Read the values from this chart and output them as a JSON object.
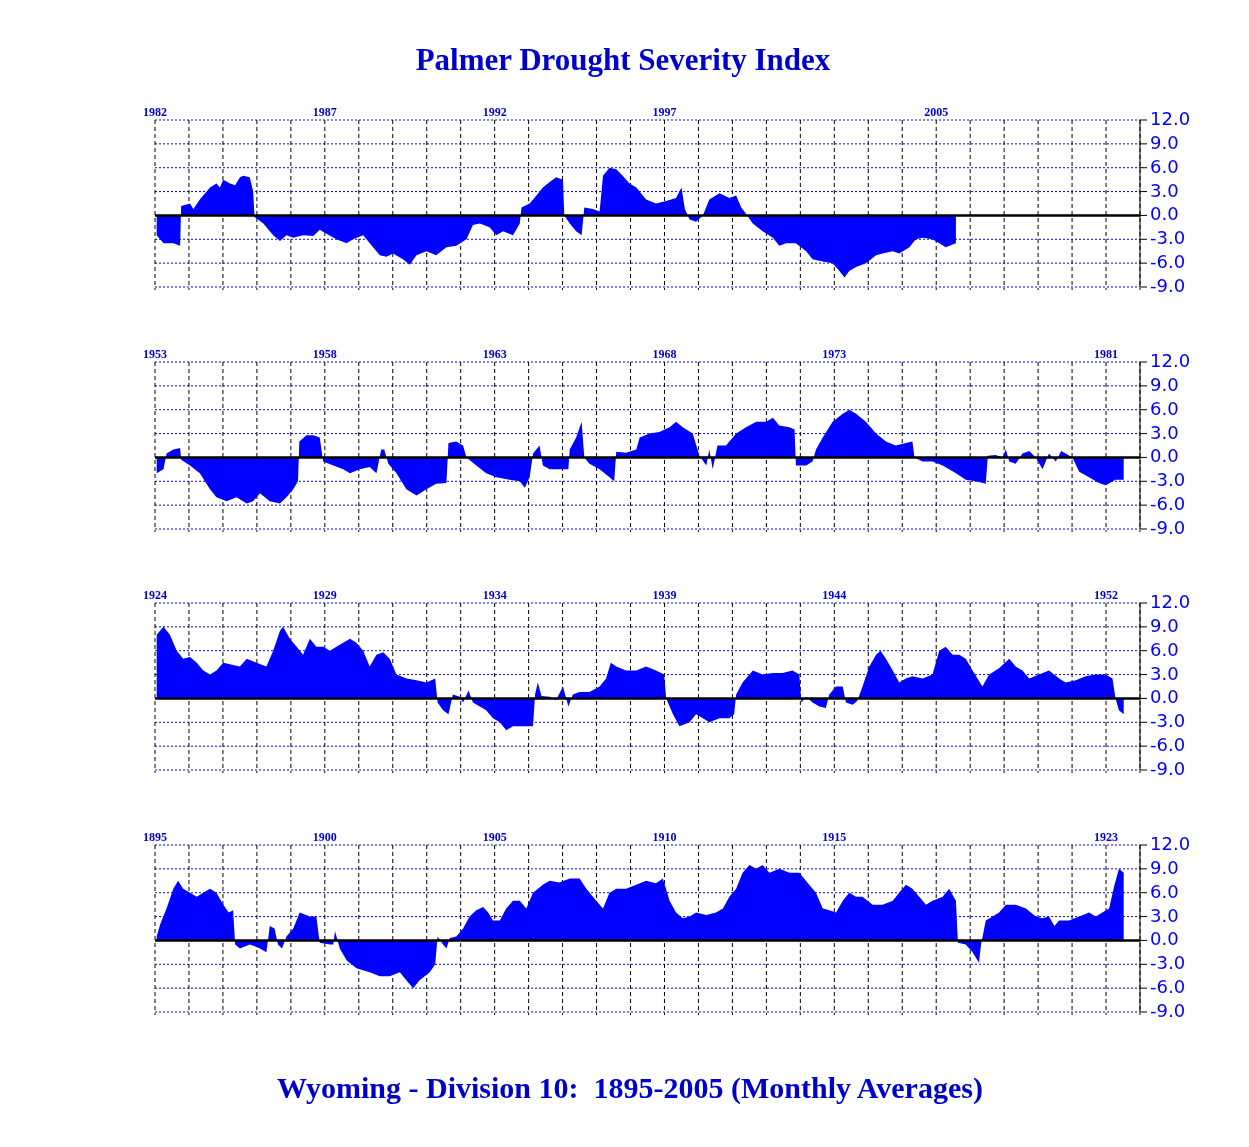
{
  "chart_data": [
    {
      "type": "area",
      "title": "Palmer Drought Severity Index",
      "color": "#0000ff",
      "grid": true,
      "xlim": [
        1982,
        2011
      ],
      "ylim": [
        -9,
        12
      ],
      "xticks": [
        {
          "value": 1982,
          "label": "1982"
        },
        {
          "value": 1983,
          "label": null
        },
        {
          "value": 1984,
          "label": null
        },
        {
          "value": 1985,
          "label": null
        },
        {
          "value": 1986,
          "label": null
        },
        {
          "value": 1987,
          "label": "1987"
        },
        {
          "value": 1988,
          "label": null
        },
        {
          "value": 1989,
          "label": null
        },
        {
          "value": 1990,
          "label": null
        },
        {
          "value": 1991,
          "label": null
        },
        {
          "value": 1992,
          "label": "1992"
        },
        {
          "value": 1993,
          "label": null
        },
        {
          "value": 1994,
          "label": null
        },
        {
          "value": 1995,
          "label": null
        },
        {
          "value": 1996,
          "label": null
        },
        {
          "value": 1997,
          "label": "1997"
        },
        {
          "value": 1998,
          "label": null
        },
        {
          "value": 1999,
          "label": null
        },
        {
          "value": 2000,
          "label": null
        },
        {
          "value": 2001,
          "label": null
        },
        {
          "value": 2002,
          "label": null
        },
        {
          "value": 2003,
          "label": null
        },
        {
          "value": 2004,
          "label": null
        },
        {
          "value": 2005,
          "label": "2005"
        },
        {
          "value": 2006,
          "label": null
        },
        {
          "value": 2007,
          "label": null
        },
        {
          "value": 2008,
          "label": null
        },
        {
          "value": 2009,
          "label": null
        },
        {
          "value": 2010,
          "label": null
        },
        {
          "value": 2011,
          "label": null
        }
      ],
      "yticks": [
        {
          "value": 12,
          "label": "12.0"
        },
        {
          "value": 9,
          "label": "9.0"
        },
        {
          "value": 6,
          "label": "6.0"
        },
        {
          "value": 3,
          "label": "3.0"
        },
        {
          "value": 0,
          "label": "0.0"
        },
        {
          "value": -3,
          "label": "-3.0"
        },
        {
          "value": -6,
          "label": "-6.0"
        },
        {
          "value": -9,
          "label": "-9.0"
        }
      ],
      "x": [
        1982.05,
        1982.25,
        1982.54,
        1982.74,
        1982.77,
        1983.03,
        1983.13,
        1983.32,
        1983.62,
        1983.81,
        1983.91,
        1984.01,
        1984.21,
        1984.36,
        1984.5,
        1984.6,
        1984.79,
        1984.89,
        1984.93,
        1985.19,
        1985.48,
        1985.68,
        1985.87,
        1986.07,
        1986.36,
        1986.66,
        1986.85,
        1987.05,
        1987.34,
        1987.64,
        1987.83,
        1988.13,
        1988.42,
        1988.62,
        1988.81,
        1989.01,
        1989.3,
        1989.5,
        1989.7,
        1989.99,
        1990.28,
        1990.58,
        1990.87,
        1991.17,
        1991.36,
        1991.56,
        1991.85,
        1992.05,
        1992.25,
        1992.54,
        1992.74,
        1992.79,
        1993.03,
        1993.23,
        1993.42,
        1993.62,
        1993.81,
        1994.01,
        1994.05,
        1994.21,
        1994.4,
        1994.56,
        1994.64,
        1994.89,
        1995.09,
        1995.19,
        1995.38,
        1995.58,
        1995.77,
        1995.97,
        1996.17,
        1996.46,
        1996.75,
        1997.05,
        1997.34,
        1997.5,
        1997.6,
        1997.74,
        1997.93,
        1998.13,
        1998.32,
        1998.62,
        1998.91,
        1999.11,
        1999.26,
        1999.4,
        1999.6,
        1999.89,
        2000.19,
        2000.38,
        2000.58,
        2000.87,
        2001.17,
        2001.36,
        2001.66,
        2001.95,
        2002.15,
        2002.3,
        2002.44,
        2002.64,
        2002.93,
        2003.23,
        2003.42,
        2003.72,
        2003.91,
        2004.21,
        2004.4,
        2004.6,
        2004.89,
        2005.09,
        2005.28,
        2005.58
      ],
      "values": [
        -2.5,
        -3.5,
        -3.5,
        -3.8,
        1.2,
        1.5,
        0.8,
        2.0,
        3.5,
        4.0,
        3.5,
        4.5,
        4.0,
        3.8,
        4.8,
        5.0,
        4.8,
        3.0,
        -0.2,
        -1.0,
        -2.5,
        -3.2,
        -2.5,
        -2.8,
        -2.5,
        -2.6,
        -1.8,
        -2.3,
        -3.0,
        -3.5,
        -3.0,
        -2.5,
        -4.0,
        -5.0,
        -5.2,
        -4.8,
        -5.5,
        -6.2,
        -5.0,
        -4.5,
        -5.0,
        -4.0,
        -3.8,
        -3.0,
        -1.2,
        -1.0,
        -1.5,
        -2.5,
        -2.0,
        -2.5,
        -1.0,
        1.0,
        1.5,
        2.5,
        3.5,
        4.2,
        4.8,
        4.5,
        0.0,
        -1.0,
        -2.0,
        -2.5,
        1.0,
        0.8,
        0.5,
        5.0,
        6.0,
        5.8,
        5.0,
        4.0,
        3.5,
        2.0,
        1.5,
        1.8,
        2.2,
        3.5,
        0.8,
        -0.5,
        -0.8,
        0.0,
        2.0,
        2.8,
        2.2,
        2.5,
        1.0,
        0.2,
        -1.0,
        -2.0,
        -2.8,
        -3.8,
        -3.5,
        -3.5,
        -4.5,
        -5.5,
        -5.8,
        -6.0,
        -7.0,
        -7.8,
        -7.0,
        -6.5,
        -6.0,
        -5.0,
        -4.8,
        -4.5,
        -4.8,
        -4.0,
        -3.0,
        -2.8,
        -3.0,
        -3.5,
        -4.0,
        -3.5
      ]
    },
    {
      "type": "area",
      "color": "#0000ff",
      "grid": true,
      "xlim": [
        1953,
        1982
      ],
      "ylim": [
        -9,
        12
      ],
      "xticks": [
        {
          "value": 1953,
          "label": "1953"
        },
        {
          "value": 1954,
          "label": null
        },
        {
          "value": 1955,
          "label": null
        },
        {
          "value": 1956,
          "label": null
        },
        {
          "value": 1957,
          "label": null
        },
        {
          "value": 1958,
          "label": "1958"
        },
        {
          "value": 1959,
          "label": null
        },
        {
          "value": 1960,
          "label": null
        },
        {
          "value": 1961,
          "label": null
        },
        {
          "value": 1962,
          "label": null
        },
        {
          "value": 1963,
          "label": "1963"
        },
        {
          "value": 1964,
          "label": null
        },
        {
          "value": 1965,
          "label": null
        },
        {
          "value": 1966,
          "label": null
        },
        {
          "value": 1967,
          "label": null
        },
        {
          "value": 1968,
          "label": "1968"
        },
        {
          "value": 1969,
          "label": null
        },
        {
          "value": 1970,
          "label": null
        },
        {
          "value": 1971,
          "label": null
        },
        {
          "value": 1972,
          "label": null
        },
        {
          "value": 1973,
          "label": "1973"
        },
        {
          "value": 1974,
          "label": null
        },
        {
          "value": 1975,
          "label": null
        },
        {
          "value": 1976,
          "label": null
        },
        {
          "value": 1977,
          "label": null
        },
        {
          "value": 1978,
          "label": null
        },
        {
          "value": 1979,
          "label": null
        },
        {
          "value": 1980,
          "label": null
        },
        {
          "value": 1981,
          "label": "1981"
        },
        {
          "value": 1982,
          "label": null
        }
      ],
      "yticks": [
        {
          "value": 12,
          "label": "12.0"
        },
        {
          "value": 9,
          "label": "9.0"
        },
        {
          "value": 6,
          "label": "6.0"
        },
        {
          "value": 3,
          "label": "3.0"
        },
        {
          "value": 0,
          "label": "0.0"
        },
        {
          "value": -3,
          "label": "-3.0"
        },
        {
          "value": -6,
          "label": "-6.0"
        },
        {
          "value": -9,
          "label": "-9.0"
        }
      ],
      "x": [
        1953.05,
        1953.25,
        1953.34,
        1953.54,
        1953.74,
        1953.77,
        1954.03,
        1954.32,
        1954.62,
        1954.81,
        1955.11,
        1955.4,
        1955.7,
        1955.89,
        1956.09,
        1956.38,
        1956.68,
        1956.87,
        1957.07,
        1957.21,
        1957.25,
        1957.46,
        1957.66,
        1957.85,
        1957.95,
        1958.25,
        1958.54,
        1958.74,
        1959.03,
        1959.32,
        1959.52,
        1959.66,
        1959.75,
        1959.87,
        1960.11,
        1960.4,
        1960.7,
        1960.99,
        1961.28,
        1961.58,
        1961.64,
        1961.87,
        1962.07,
        1962.17,
        1962.46,
        1962.75,
        1963.05,
        1963.44,
        1963.74,
        1963.89,
        1964.03,
        1964.13,
        1964.32,
        1964.42,
        1964.62,
        1964.91,
        1965.17,
        1965.21,
        1965.4,
        1965.56,
        1965.64,
        1965.79,
        1966.09,
        1966.38,
        1966.52,
        1966.58,
        1966.87,
        1967.17,
        1967.27,
        1967.56,
        1967.85,
        1968.15,
        1968.34,
        1968.54,
        1968.83,
        1969.03,
        1969.23,
        1969.32,
        1969.42,
        1969.56,
        1969.81,
        1970.11,
        1970.4,
        1970.7,
        1970.99,
        1971.19,
        1971.38,
        1971.68,
        1971.83,
        1971.87,
        1972.17,
        1972.36,
        1972.46,
        1972.66,
        1972.95,
        1973.25,
        1973.44,
        1973.64,
        1973.93,
        1974.23,
        1974.52,
        1974.81,
        1975.11,
        1975.3,
        1975.36,
        1975.6,
        1975.89,
        1976.19,
        1976.58,
        1976.87,
        1977.17,
        1977.46,
        1977.52,
        1977.75,
        1977.95,
        1978.05,
        1978.15,
        1978.34,
        1978.54,
        1978.74,
        1978.93,
        1979.13,
        1979.32,
        1979.52,
        1979.68,
        1979.81,
        1980.01,
        1980.21,
        1980.5,
        1980.79,
        1980.99,
        1981.28,
        1981.52
      ],
      "values": [
        -2.0,
        -1.5,
        0.5,
        1.0,
        1.2,
        -0.3,
        -1.0,
        -2.0,
        -4.0,
        -5.0,
        -5.5,
        -5.0,
        -5.8,
        -5.5,
        -4.5,
        -5.5,
        -5.8,
        -5.0,
        -4.0,
        -3.0,
        2.0,
        2.8,
        2.8,
        2.5,
        -0.5,
        -1.0,
        -1.5,
        -2.0,
        -1.5,
        -1.2,
        -2.0,
        1.0,
        1.0,
        -0.8,
        -2.0,
        -4.0,
        -4.8,
        -4.0,
        -3.3,
        -3.2,
        1.8,
        2.0,
        1.5,
        0.0,
        -1.0,
        -2.0,
        -2.5,
        -2.8,
        -3.0,
        -3.8,
        -2.5,
        0.5,
        1.5,
        -1.0,
        -1.5,
        -1.5,
        -1.5,
        1.0,
        2.5,
        4.5,
        0.0,
        -0.8,
        -1.5,
        -2.5,
        -3.0,
        0.7,
        0.6,
        1.0,
        2.5,
        3.0,
        3.2,
        3.8,
        4.5,
        3.8,
        3.0,
        0.2,
        -1.0,
        1.0,
        -1.5,
        1.5,
        1.5,
        3.0,
        3.8,
        4.5,
        4.5,
        5.0,
        4.0,
        3.8,
        3.5,
        -1.0,
        -1.0,
        -0.5,
        1.0,
        2.5,
        4.5,
        5.5,
        6.0,
        5.5,
        4.5,
        3.0,
        2.0,
        1.5,
        1.8,
        2.0,
        0.0,
        -0.5,
        -0.5,
        -1.0,
        -2.0,
        -2.8,
        -3.0,
        -3.3,
        0.2,
        0.3,
        0.0,
        1.0,
        -0.5,
        -0.8,
        0.5,
        0.8,
        0.0,
        -1.5,
        0.5,
        -0.5,
        0.8,
        0.5,
        0.0,
        -1.8,
        -2.5,
        -3.2,
        -3.5,
        -2.8,
        -2.8
      ]
    },
    {
      "type": "area",
      "color": "#0000ff",
      "grid": true,
      "xlim": [
        1924,
        1953
      ],
      "ylim": [
        -9,
        12
      ],
      "xticks": [
        {
          "value": 1924,
          "label": "1924"
        },
        {
          "value": 1925,
          "label": null
        },
        {
          "value": 1926,
          "label": null
        },
        {
          "value": 1927,
          "label": null
        },
        {
          "value": 1928,
          "label": null
        },
        {
          "value": 1929,
          "label": "1929"
        },
        {
          "value": 1930,
          "label": null
        },
        {
          "value": 1931,
          "label": null
        },
        {
          "value": 1932,
          "label": null
        },
        {
          "value": 1933,
          "label": null
        },
        {
          "value": 1934,
          "label": "1934"
        },
        {
          "value": 1935,
          "label": null
        },
        {
          "value": 1936,
          "label": null
        },
        {
          "value": 1937,
          "label": null
        },
        {
          "value": 1938,
          "label": null
        },
        {
          "value": 1939,
          "label": "1939"
        },
        {
          "value": 1940,
          "label": null
        },
        {
          "value": 1941,
          "label": null
        },
        {
          "value": 1942,
          "label": null
        },
        {
          "value": 1943,
          "label": null
        },
        {
          "value": 1944,
          "label": "1944"
        },
        {
          "value": 1945,
          "label": null
        },
        {
          "value": 1946,
          "label": null
        },
        {
          "value": 1947,
          "label": null
        },
        {
          "value": 1948,
          "label": null
        },
        {
          "value": 1949,
          "label": null
        },
        {
          "value": 1950,
          "label": null
        },
        {
          "value": 1951,
          "label": null
        },
        {
          "value": 1952,
          "label": "1952"
        },
        {
          "value": 1953,
          "label": null
        }
      ],
      "yticks": [
        {
          "value": 12,
          "label": "12.0"
        },
        {
          "value": 9,
          "label": "9.0"
        },
        {
          "value": 6,
          "label": "6.0"
        },
        {
          "value": 3,
          "label": "3.0"
        },
        {
          "value": 0,
          "label": "0.0"
        },
        {
          "value": -3,
          "label": "-3.0"
        },
        {
          "value": -6,
          "label": "-6.0"
        },
        {
          "value": -9,
          "label": "-9.0"
        }
      ],
      "x": [
        1924.05,
        1924.25,
        1924.44,
        1924.64,
        1924.83,
        1925.03,
        1925.23,
        1925.42,
        1925.62,
        1925.81,
        1926.01,
        1926.3,
        1926.5,
        1926.7,
        1926.99,
        1927.28,
        1927.48,
        1927.68,
        1927.77,
        1927.97,
        1928.17,
        1928.36,
        1928.56,
        1928.75,
        1928.95,
        1929.15,
        1929.34,
        1929.54,
        1929.74,
        1929.93,
        1930.13,
        1930.32,
        1930.52,
        1930.72,
        1930.91,
        1931.11,
        1931.4,
        1931.7,
        1931.99,
        1932.25,
        1932.32,
        1932.48,
        1932.64,
        1932.77,
        1932.97,
        1933.07,
        1933.23,
        1933.36,
        1933.56,
        1933.75,
        1933.95,
        1934.15,
        1934.34,
        1934.54,
        1934.83,
        1935.13,
        1935.19,
        1935.27,
        1935.38,
        1935.62,
        1935.81,
        1936.01,
        1936.17,
        1936.3,
        1936.5,
        1936.79,
        1937.09,
        1937.28,
        1937.42,
        1937.58,
        1937.87,
        1938.17,
        1938.46,
        1938.75,
        1938.99,
        1939.05,
        1939.25,
        1939.44,
        1939.74,
        1939.93,
        1940.13,
        1940.32,
        1940.62,
        1940.91,
        1941.05,
        1941.11,
        1941.3,
        1941.6,
        1941.89,
        1942.19,
        1942.48,
        1942.77,
        1942.97,
        1943.03,
        1943.17,
        1943.36,
        1943.56,
        1943.75,
        1943.85,
        1944.05,
        1944.25,
        1944.34,
        1944.54,
        1944.68,
        1944.83,
        1945.03,
        1945.23,
        1945.36,
        1945.52,
        1945.72,
        1945.91,
        1946.11,
        1946.3,
        1946.6,
        1946.89,
        1947.09,
        1947.28,
        1947.48,
        1947.68,
        1947.87,
        1948.07,
        1948.36,
        1948.56,
        1948.85,
        1949.15,
        1949.34,
        1949.54,
        1949.74,
        1950.03,
        1950.32,
        1950.62,
        1950.81,
        1951.11,
        1951.4,
        1951.7,
        1951.99,
        1952.19,
        1952.28,
        1952.38,
        1952.52
      ],
      "values": [
        8.0,
        9.0,
        8.0,
        6.0,
        5.0,
        5.2,
        4.5,
        3.5,
        3.0,
        3.5,
        4.5,
        4.2,
        4.0,
        5.0,
        4.5,
        4.0,
        6.0,
        8.5,
        9.0,
        7.5,
        6.5,
        5.5,
        7.5,
        6.5,
        6.5,
        6.0,
        6.5,
        7.0,
        7.5,
        7.0,
        6.0,
        4.0,
        5.5,
        5.8,
        5.0,
        3.0,
        2.5,
        2.3,
        2.0,
        2.5,
        -0.5,
        -1.5,
        -2.0,
        0.5,
        0.2,
        -0.5,
        1.0,
        -0.5,
        -1.0,
        -1.5,
        -2.5,
        -3.0,
        -4.0,
        -3.5,
        -3.5,
        -3.5,
        0.5,
        2.0,
        0.3,
        0.2,
        -0.2,
        1.5,
        -1.0,
        0.5,
        0.8,
        0.8,
        1.5,
        2.5,
        4.5,
        4.0,
        3.5,
        3.5,
        4.0,
        3.5,
        3.0,
        0.0,
        -2.0,
        -3.5,
        -3.0,
        -2.0,
        -2.5,
        -3.0,
        -2.5,
        -2.5,
        -2.0,
        0.5,
        2.0,
        3.5,
        3.0,
        3.2,
        3.2,
        3.5,
        3.0,
        -0.5,
        0.2,
        -0.5,
        -1.0,
        -1.2,
        0.5,
        1.5,
        1.5,
        -0.5,
        -0.8,
        -0.3,
        1.5,
        4.0,
        5.5,
        6.0,
        5.0,
        3.5,
        2.0,
        2.5,
        2.8,
        2.5,
        3.0,
        6.0,
        6.5,
        5.5,
        5.5,
        5.0,
        3.5,
        1.5,
        3.0,
        3.8,
        5.0,
        4.0,
        3.5,
        2.5,
        3.0,
        3.5,
        2.5,
        2.0,
        2.3,
        2.8,
        3.0,
        3.0,
        2.5,
        0.0,
        -1.5,
        -2.0
      ]
    },
    {
      "type": "area",
      "color": "#0000ff",
      "grid": true,
      "xlim": [
        1895,
        1924
      ],
      "ylim": [
        -9,
        12
      ],
      "annotations": [
        "Wyoming - Division 10:  1895-2005 (Monthly Averages)"
      ],
      "xticks": [
        {
          "value": 1895,
          "label": "1895"
        },
        {
          "value": 1896,
          "label": null
        },
        {
          "value": 1897,
          "label": null
        },
        {
          "value": 1898,
          "label": null
        },
        {
          "value": 1899,
          "label": null
        },
        {
          "value": 1900,
          "label": "1900"
        },
        {
          "value": 1901,
          "label": null
        },
        {
          "value": 1902,
          "label": null
        },
        {
          "value": 1903,
          "label": null
        },
        {
          "value": 1904,
          "label": null
        },
        {
          "value": 1905,
          "label": "1905"
        },
        {
          "value": 1906,
          "label": null
        },
        {
          "value": 1907,
          "label": null
        },
        {
          "value": 1908,
          "label": null
        },
        {
          "value": 1909,
          "label": null
        },
        {
          "value": 1910,
          "label": "1910"
        },
        {
          "value": 1911,
          "label": null
        },
        {
          "value": 1912,
          "label": null
        },
        {
          "value": 1913,
          "label": null
        },
        {
          "value": 1914,
          "label": null
        },
        {
          "value": 1915,
          "label": "1915"
        },
        {
          "value": 1916,
          "label": null
        },
        {
          "value": 1917,
          "label": null
        },
        {
          "value": 1918,
          "label": null
        },
        {
          "value": 1919,
          "label": null
        },
        {
          "value": 1920,
          "label": null
        },
        {
          "value": 1921,
          "label": null
        },
        {
          "value": 1922,
          "label": null
        },
        {
          "value": 1923,
          "label": "1923"
        },
        {
          "value": 1924,
          "label": null
        }
      ],
      "yticks": [
        {
          "value": 12,
          "label": "12.0"
        },
        {
          "value": 9,
          "label": "9.0"
        },
        {
          "value": 6,
          "label": "6.0"
        },
        {
          "value": 3,
          "label": "3.0"
        },
        {
          "value": 0,
          "label": "0.0"
        },
        {
          "value": -3,
          "label": "-3.0"
        },
        {
          "value": -6,
          "label": "-6.0"
        },
        {
          "value": -9,
          "label": "-9.0"
        }
      ],
      "x": [
        1895.05,
        1895.15,
        1895.34,
        1895.54,
        1895.68,
        1895.83,
        1896.03,
        1896.23,
        1896.42,
        1896.62,
        1896.81,
        1897.01,
        1897.17,
        1897.3,
        1897.36,
        1897.5,
        1897.79,
        1898.09,
        1898.28,
        1898.38,
        1898.52,
        1898.62,
        1898.74,
        1898.87,
        1899.07,
        1899.26,
        1899.56,
        1899.75,
        1899.85,
        1900.15,
        1900.25,
        1900.3,
        1900.44,
        1900.64,
        1900.93,
        1901.32,
        1901.62,
        1901.91,
        1902.21,
        1902.4,
        1902.6,
        1902.79,
        1903.09,
        1903.25,
        1903.32,
        1903.48,
        1903.58,
        1903.68,
        1903.87,
        1904.07,
        1904.26,
        1904.46,
        1904.66,
        1904.81,
        1904.95,
        1905.15,
        1905.34,
        1905.54,
        1905.74,
        1905.93,
        1906.13,
        1906.42,
        1906.62,
        1906.91,
        1907.21,
        1907.5,
        1907.7,
        1907.99,
        1908.19,
        1908.38,
        1908.58,
        1908.87,
        1909.17,
        1909.46,
        1909.75,
        1909.95,
        1910.15,
        1910.34,
        1910.54,
        1910.74,
        1910.93,
        1911.23,
        1911.52,
        1911.72,
        1911.91,
        1912.11,
        1912.3,
        1912.5,
        1912.7,
        1912.89,
        1913.09,
        1913.38,
        1913.68,
        1913.97,
        1914.26,
        1914.46,
        1914.66,
        1914.85,
        1915.05,
        1915.25,
        1915.44,
        1915.64,
        1915.83,
        1916.13,
        1916.42,
        1916.72,
        1916.91,
        1917.11,
        1917.3,
        1917.5,
        1917.7,
        1917.89,
        1918.19,
        1918.38,
        1918.58,
        1918.64,
        1918.87,
        1919.07,
        1919.26,
        1919.32,
        1919.46,
        1919.66,
        1919.85,
        1920.05,
        1920.34,
        1920.64,
        1920.93,
        1921.13,
        1921.32,
        1921.48,
        1921.62,
        1921.91,
        1922.21,
        1922.5,
        1922.7,
        1922.89,
        1923.09,
        1923.25,
        1923.38,
        1923.52
      ],
      "values": [
        0.5,
        2.0,
        4.0,
        6.5,
        7.5,
        6.5,
        6.0,
        5.5,
        6.0,
        6.5,
        6.0,
        4.5,
        3.5,
        3.8,
        -0.5,
        -1.0,
        -0.5,
        -1.0,
        -1.5,
        1.8,
        1.5,
        -0.5,
        -1.0,
        0.5,
        1.5,
        3.5,
        3.0,
        3.0,
        -0.3,
        -0.5,
        -0.5,
        1.2,
        -1.0,
        -2.5,
        -3.5,
        -4.0,
        -4.5,
        -4.5,
        -4.0,
        -5.0,
        -6.0,
        -5.0,
        -4.0,
        -3.0,
        0.5,
        -0.5,
        -1.0,
        0.3,
        0.5,
        1.5,
        3.0,
        3.8,
        4.2,
        3.5,
        2.5,
        2.5,
        4.0,
        5.0,
        5.0,
        4.0,
        6.0,
        7.0,
        7.5,
        7.3,
        7.8,
        7.8,
        6.5,
        5.0,
        4.0,
        6.0,
        6.5,
        6.5,
        7.0,
        7.5,
        7.2,
        7.8,
        5.0,
        3.5,
        2.8,
        3.0,
        3.5,
        3.2,
        3.5,
        4.0,
        5.5,
        6.5,
        8.5,
        9.5,
        9.0,
        9.5,
        8.5,
        9.0,
        8.5,
        8.5,
        7.0,
        6.0,
        4.0,
        3.8,
        3.5,
        5.0,
        6.0,
        5.5,
        5.5,
        4.5,
        4.5,
        5.0,
        6.0,
        7.0,
        6.5,
        5.5,
        4.5,
        5.0,
        5.5,
        6.5,
        5.0,
        -0.3,
        -0.5,
        -1.5,
        -2.8,
        -0.5,
        2.5,
        3.0,
        3.5,
        4.5,
        4.5,
        4.0,
        3.0,
        2.8,
        3.0,
        1.8,
        2.5,
        2.5,
        3.0,
        3.5,
        3.0,
        3.5,
        4.0,
        7.0,
        9.0,
        8.5
      ]
    }
  ]
}
